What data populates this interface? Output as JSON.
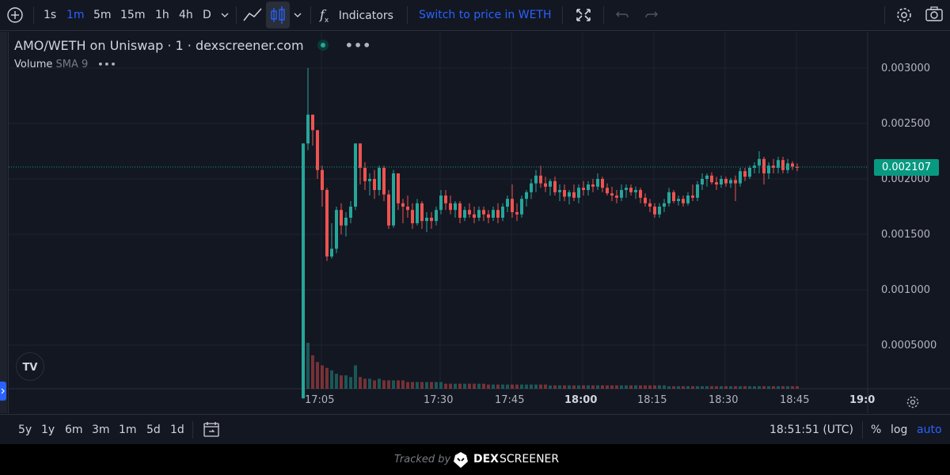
{
  "toolbar": {
    "intervals": [
      {
        "label": "1s",
        "active": false
      },
      {
        "label": "1m",
        "active": true
      },
      {
        "label": "5m",
        "active": false
      },
      {
        "label": "15m",
        "active": false
      },
      {
        "label": "1h",
        "active": false
      },
      {
        "label": "4h",
        "active": false
      },
      {
        "label": "D",
        "active": false
      }
    ],
    "indicators_label": "Indicators",
    "switch_price_label": "Switch to price in WETH"
  },
  "legend": {
    "title": "AMO/WETH on Uniswap · 1 · dexscreener.com",
    "volume_label": "Volume",
    "sma_label": "SMA 9"
  },
  "price_axis": {
    "labels": [
      "0.003000",
      "0.002500",
      "0.002000",
      "0.001500",
      "0.001000",
      "0.0005000"
    ],
    "last_price": "0.002107"
  },
  "time_axis": {
    "labels": [
      "17:05",
      "17:30",
      "17:45",
      "18:00",
      "18:15",
      "18:30",
      "18:45",
      "19:0"
    ]
  },
  "bottom_bar": {
    "ranges": [
      "5y",
      "1y",
      "6m",
      "3m",
      "1m",
      "5d",
      "1d"
    ],
    "clock": "18:51:51 (UTC)",
    "percent_label": "%",
    "log_label": "log",
    "auto_label": "auto"
  },
  "footer": {
    "tracked_by": "Tracked by",
    "brand_dex": "DEX",
    "brand_screener": "SCREENER"
  },
  "colors": {
    "up": "#26a69a",
    "down": "#ef5350",
    "accent": "#2962ff",
    "last_price_bg": "#089981"
  },
  "chart_data": {
    "type": "candlestick",
    "interval": "1m",
    "ylim": [
      0,
      0.003
    ],
    "candles": [
      {
        "t": "17:04",
        "o": 2e-05,
        "h": 0.00232,
        "l": 2e-05,
        "c": 0.00232
      },
      {
        "t": "17:05",
        "o": 0.00232,
        "h": 0.003,
        "l": 0.00226,
        "c": 0.00258
      },
      {
        "t": "17:06",
        "o": 0.00258,
        "h": 0.00258,
        "l": 0.0023,
        "c": 0.00244
      },
      {
        "t": "17:07",
        "o": 0.00244,
        "h": 0.00244,
        "l": 0.002,
        "c": 0.00208
      },
      {
        "t": "17:08",
        "o": 0.00208,
        "h": 0.00212,
        "l": 0.00175,
        "c": 0.0019
      },
      {
        "t": "17:09",
        "o": 0.0019,
        "h": 0.00192,
        "l": 0.00126,
        "c": 0.0013
      },
      {
        "t": "17:10",
        "o": 0.0013,
        "h": 0.0016,
        "l": 0.00128,
        "c": 0.00137
      },
      {
        "t": "17:11",
        "o": 0.00137,
        "h": 0.00175,
        "l": 0.00133,
        "c": 0.00172
      },
      {
        "t": "17:12",
        "o": 0.00172,
        "h": 0.00178,
        "l": 0.0015,
        "c": 0.00158
      },
      {
        "t": "17:13",
        "o": 0.00158,
        "h": 0.0017,
        "l": 0.00148,
        "c": 0.00165
      },
      {
        "t": "17:14",
        "o": 0.00165,
        "h": 0.0018,
        "l": 0.0016,
        "c": 0.00175
      },
      {
        "t": "17:15",
        "o": 0.00175,
        "h": 0.00232,
        "l": 0.00172,
        "c": 0.00232
      },
      {
        "t": "17:16",
        "o": 0.00232,
        "h": 0.00232,
        "l": 0.00195,
        "c": 0.0021
      },
      {
        "t": "17:17",
        "o": 0.0021,
        "h": 0.00215,
        "l": 0.0019,
        "c": 0.00198
      },
      {
        "t": "17:18",
        "o": 0.00198,
        "h": 0.00205,
        "l": 0.00185,
        "c": 0.002
      },
      {
        "t": "17:19",
        "o": 0.002,
        "h": 0.00208,
        "l": 0.00182,
        "c": 0.0019
      },
      {
        "t": "17:20",
        "o": 0.0019,
        "h": 0.00212,
        "l": 0.00185,
        "c": 0.0021
      },
      {
        "t": "17:21",
        "o": 0.0021,
        "h": 0.00212,
        "l": 0.0018,
        "c": 0.00186
      },
      {
        "t": "17:22",
        "o": 0.00186,
        "h": 0.0019,
        "l": 0.00155,
        "c": 0.00158
      },
      {
        "t": "17:23",
        "o": 0.00158,
        "h": 0.00208,
        "l": 0.00156,
        "c": 0.00205
      },
      {
        "t": "17:24",
        "o": 0.00205,
        "h": 0.00205,
        "l": 0.00172,
        "c": 0.00178
      },
      {
        "t": "17:25",
        "o": 0.00178,
        "h": 0.00182,
        "l": 0.0016,
        "c": 0.00175
      },
      {
        "t": "17:26",
        "o": 0.00175,
        "h": 0.00185,
        "l": 0.00165,
        "c": 0.00172
      },
      {
        "t": "17:27",
        "o": 0.00172,
        "h": 0.00178,
        "l": 0.00155,
        "c": 0.0016
      },
      {
        "t": "17:28",
        "o": 0.0016,
        "h": 0.00182,
        "l": 0.00158,
        "c": 0.00178
      },
      {
        "t": "17:29",
        "o": 0.00178,
        "h": 0.0018,
        "l": 0.00155,
        "c": 0.00162
      },
      {
        "t": "17:30",
        "o": 0.00162,
        "h": 0.0017,
        "l": 0.00152,
        "c": 0.00165
      },
      {
        "t": "17:31",
        "o": 0.00165,
        "h": 0.0017,
        "l": 0.00155,
        "c": 0.00162
      },
      {
        "t": "17:32",
        "o": 0.00162,
        "h": 0.00175,
        "l": 0.00158,
        "c": 0.00172
      },
      {
        "t": "17:33",
        "o": 0.00172,
        "h": 0.0019,
        "l": 0.00168,
        "c": 0.00185
      },
      {
        "t": "17:34",
        "o": 0.00185,
        "h": 0.0019,
        "l": 0.00172,
        "c": 0.00178
      },
      {
        "t": "17:35",
        "o": 0.00178,
        "h": 0.00185,
        "l": 0.00168,
        "c": 0.00172
      },
      {
        "t": "17:36",
        "o": 0.00172,
        "h": 0.0018,
        "l": 0.00165,
        "c": 0.00178
      },
      {
        "t": "17:37",
        "o": 0.00178,
        "h": 0.0018,
        "l": 0.0016,
        "c": 0.00165
      },
      {
        "t": "17:38",
        "o": 0.00165,
        "h": 0.00175,
        "l": 0.00162,
        "c": 0.00172
      },
      {
        "t": "17:39",
        "o": 0.00172,
        "h": 0.00178,
        "l": 0.00165,
        "c": 0.00168
      },
      {
        "t": "17:40",
        "o": 0.00168,
        "h": 0.00175,
        "l": 0.0016,
        "c": 0.00165
      },
      {
        "t": "17:41",
        "o": 0.00165,
        "h": 0.00175,
        "l": 0.00162,
        "c": 0.00172
      },
      {
        "t": "17:42",
        "o": 0.00172,
        "h": 0.00175,
        "l": 0.00162,
        "c": 0.00168
      },
      {
        "t": "17:43",
        "o": 0.00168,
        "h": 0.00172,
        "l": 0.0016,
        "c": 0.00165
      },
      {
        "t": "17:44",
        "o": 0.00165,
        "h": 0.00175,
        "l": 0.00162,
        "c": 0.00172
      },
      {
        "t": "17:45",
        "o": 0.00172,
        "h": 0.00178,
        "l": 0.0016,
        "c": 0.00165
      },
      {
        "t": "17:46",
        "o": 0.00165,
        "h": 0.00178,
        "l": 0.00162,
        "c": 0.00175
      },
      {
        "t": "17:47",
        "o": 0.00175,
        "h": 0.00185,
        "l": 0.0017,
        "c": 0.00182
      },
      {
        "t": "17:48",
        "o": 0.00182,
        "h": 0.00195,
        "l": 0.00165,
        "c": 0.0017
      },
      {
        "t": "17:49",
        "o": 0.0017,
        "h": 0.00178,
        "l": 0.00162,
        "c": 0.00168
      },
      {
        "t": "17:50",
        "o": 0.00168,
        "h": 0.00185,
        "l": 0.00165,
        "c": 0.00182
      },
      {
        "t": "17:51",
        "o": 0.00182,
        "h": 0.0019,
        "l": 0.00175,
        "c": 0.00188
      },
      {
        "t": "17:52",
        "o": 0.00188,
        "h": 0.002,
        "l": 0.00182,
        "c": 0.00196
      },
      {
        "t": "17:53",
        "o": 0.00196,
        "h": 0.00208,
        "l": 0.00188,
        "c": 0.00203
      },
      {
        "t": "17:54",
        "o": 0.00203,
        "h": 0.00212,
        "l": 0.00192,
        "c": 0.00196
      },
      {
        "t": "17:55",
        "o": 0.00196,
        "h": 0.00202,
        "l": 0.00188,
        "c": 0.00193
      },
      {
        "t": "17:56",
        "o": 0.00193,
        "h": 0.002,
        "l": 0.00185,
        "c": 0.00198
      },
      {
        "t": "17:57",
        "o": 0.00198,
        "h": 0.00202,
        "l": 0.00185,
        "c": 0.00188
      },
      {
        "t": "17:58",
        "o": 0.00188,
        "h": 0.00195,
        "l": 0.0018,
        "c": 0.0019
      },
      {
        "t": "17:59",
        "o": 0.0019,
        "h": 0.00195,
        "l": 0.0018,
        "c": 0.00184
      },
      {
        "t": "18:00",
        "o": 0.00184,
        "h": 0.0019,
        "l": 0.00177,
        "c": 0.00188
      },
      {
        "t": "18:01",
        "o": 0.00188,
        "h": 0.00195,
        "l": 0.0018,
        "c": 0.00183
      },
      {
        "t": "18:02",
        "o": 0.00183,
        "h": 0.00195,
        "l": 0.00178,
        "c": 0.00192
      },
      {
        "t": "18:03",
        "o": 0.00192,
        "h": 0.00198,
        "l": 0.00185,
        "c": 0.0019
      },
      {
        "t": "18:04",
        "o": 0.0019,
        "h": 0.00198,
        "l": 0.00185,
        "c": 0.00195
      },
      {
        "t": "18:05",
        "o": 0.00195,
        "h": 0.002,
        "l": 0.00188,
        "c": 0.00193
      },
      {
        "t": "18:06",
        "o": 0.00193,
        "h": 0.00205,
        "l": 0.0019,
        "c": 0.002
      },
      {
        "t": "18:07",
        "o": 0.002,
        "h": 0.00202,
        "l": 0.00188,
        "c": 0.00192
      },
      {
        "t": "18:08",
        "o": 0.00192,
        "h": 0.00196,
        "l": 0.00185,
        "c": 0.00187
      },
      {
        "t": "18:09",
        "o": 0.00187,
        "h": 0.00193,
        "l": 0.0018,
        "c": 0.00185
      },
      {
        "t": "18:10",
        "o": 0.00185,
        "h": 0.0019,
        "l": 0.00178,
        "c": 0.00183
      },
      {
        "t": "18:11",
        "o": 0.00183,
        "h": 0.00195,
        "l": 0.0018,
        "c": 0.0019
      },
      {
        "t": "18:12",
        "o": 0.0019,
        "h": 0.00195,
        "l": 0.00183,
        "c": 0.00192
      },
      {
        "t": "18:13",
        "o": 0.00192,
        "h": 0.00195,
        "l": 0.00185,
        "c": 0.00188
      },
      {
        "t": "18:14",
        "o": 0.00188,
        "h": 0.00193,
        "l": 0.00182,
        "c": 0.0019
      },
      {
        "t": "18:15",
        "o": 0.0019,
        "h": 0.00192,
        "l": 0.00178,
        "c": 0.00183
      },
      {
        "t": "18:16",
        "o": 0.00183,
        "h": 0.00187,
        "l": 0.00175,
        "c": 0.00178
      },
      {
        "t": "18:17",
        "o": 0.00178,
        "h": 0.00182,
        "l": 0.0017,
        "c": 0.00175
      },
      {
        "t": "18:18",
        "o": 0.00175,
        "h": 0.00178,
        "l": 0.00165,
        "c": 0.00168
      },
      {
        "t": "18:19",
        "o": 0.00168,
        "h": 0.00178,
        "l": 0.00165,
        "c": 0.00175
      },
      {
        "t": "18:20",
        "o": 0.00175,
        "h": 0.00182,
        "l": 0.0017,
        "c": 0.00178
      },
      {
        "t": "18:21",
        "o": 0.00178,
        "h": 0.00192,
        "l": 0.00175,
        "c": 0.00188
      },
      {
        "t": "18:22",
        "o": 0.00188,
        "h": 0.0019,
        "l": 0.00178,
        "c": 0.0018
      },
      {
        "t": "18:23",
        "o": 0.0018,
        "h": 0.00185,
        "l": 0.00176,
        "c": 0.00182
      },
      {
        "t": "18:24",
        "o": 0.00182,
        "h": 0.00185,
        "l": 0.00175,
        "c": 0.00178
      },
      {
        "t": "18:25",
        "o": 0.00178,
        "h": 0.00188,
        "l": 0.00176,
        "c": 0.00185
      },
      {
        "t": "18:26",
        "o": 0.00185,
        "h": 0.00195,
        "l": 0.0018,
        "c": 0.00183
      },
      {
        "t": "18:27",
        "o": 0.00183,
        "h": 0.00198,
        "l": 0.0018,
        "c": 0.00195
      },
      {
        "t": "18:28",
        "o": 0.00195,
        "h": 0.00205,
        "l": 0.0019,
        "c": 0.002
      },
      {
        "t": "18:29",
        "o": 0.002,
        "h": 0.00205,
        "l": 0.00193,
        "c": 0.00203
      },
      {
        "t": "18:30",
        "o": 0.00203,
        "h": 0.00206,
        "l": 0.00195,
        "c": 0.00197
      },
      {
        "t": "18:31",
        "o": 0.00197,
        "h": 0.00202,
        "l": 0.0019,
        "c": 0.00195
      },
      {
        "t": "18:32",
        "o": 0.00195,
        "h": 0.00203,
        "l": 0.00192,
        "c": 0.002
      },
      {
        "t": "18:33",
        "o": 0.002,
        "h": 0.00202,
        "l": 0.00193,
        "c": 0.00196
      },
      {
        "t": "18:34",
        "o": 0.00196,
        "h": 0.00201,
        "l": 0.00192,
        "c": 0.00199
      },
      {
        "t": "18:35",
        "o": 0.00199,
        "h": 0.00203,
        "l": 0.0018,
        "c": 0.00196
      },
      {
        "t": "18:36",
        "o": 0.00196,
        "h": 0.0021,
        "l": 0.00193,
        "c": 0.00207
      },
      {
        "t": "18:37",
        "o": 0.00207,
        "h": 0.0021,
        "l": 0.00198,
        "c": 0.00202
      },
      {
        "t": "18:38",
        "o": 0.00202,
        "h": 0.00212,
        "l": 0.002,
        "c": 0.0021
      },
      {
        "t": "18:39",
        "o": 0.0021,
        "h": 0.00215,
        "l": 0.00205,
        "c": 0.00212
      },
      {
        "t": "18:40",
        "o": 0.00212,
        "h": 0.00225,
        "l": 0.00205,
        "c": 0.00218
      },
      {
        "t": "18:41",
        "o": 0.00218,
        "h": 0.0022,
        "l": 0.00195,
        "c": 0.00205
      },
      {
        "t": "18:42",
        "o": 0.00205,
        "h": 0.00215,
        "l": 0.002,
        "c": 0.00212
      },
      {
        "t": "18:43",
        "o": 0.00212,
        "h": 0.00218,
        "l": 0.00205,
        "c": 0.0021
      },
      {
        "t": "18:44",
        "o": 0.0021,
        "h": 0.0022,
        "l": 0.00205,
        "c": 0.00217
      },
      {
        "t": "18:45",
        "o": 0.00217,
        "h": 0.0022,
        "l": 0.00205,
        "c": 0.00208
      },
      {
        "t": "18:46",
        "o": 0.00208,
        "h": 0.00218,
        "l": 0.00205,
        "c": 0.00214
      },
      {
        "t": "18:47",
        "o": 0.00214,
        "h": 0.00216,
        "l": 0.00208,
        "c": 0.00211
      },
      {
        "t": "18:48",
        "o": 0.00211,
        "h": 0.00214,
        "l": 0.00207,
        "c": 0.0021
      }
    ],
    "volume": [
      38,
      55,
      40,
      32,
      28,
      25,
      22,
      18,
      16,
      16,
      14,
      28,
      14,
      12,
      12,
      10,
      12,
      10,
      10,
      10,
      10,
      10,
      8,
      8,
      8,
      8,
      8,
      8,
      8,
      8,
      6,
      6,
      6,
      6,
      6,
      6,
      6,
      6,
      6,
      5,
      5,
      5,
      5,
      5,
      5,
      5,
      5,
      5,
      5,
      5,
      5,
      5,
      4,
      4,
      4,
      4,
      4,
      4,
      4,
      4,
      4,
      4,
      4,
      4,
      4,
      4,
      4,
      4,
      4,
      4,
      4,
      4,
      4,
      4,
      4,
      4,
      4,
      3,
      3,
      3,
      3,
      3,
      3,
      3,
      3,
      3,
      3,
      3,
      3,
      3,
      3,
      3,
      3,
      3,
      3,
      3,
      3,
      3,
      3,
      3,
      3,
      3,
      3,
      3,
      3
    ],
    "ylabel": "",
    "grid": true
  }
}
